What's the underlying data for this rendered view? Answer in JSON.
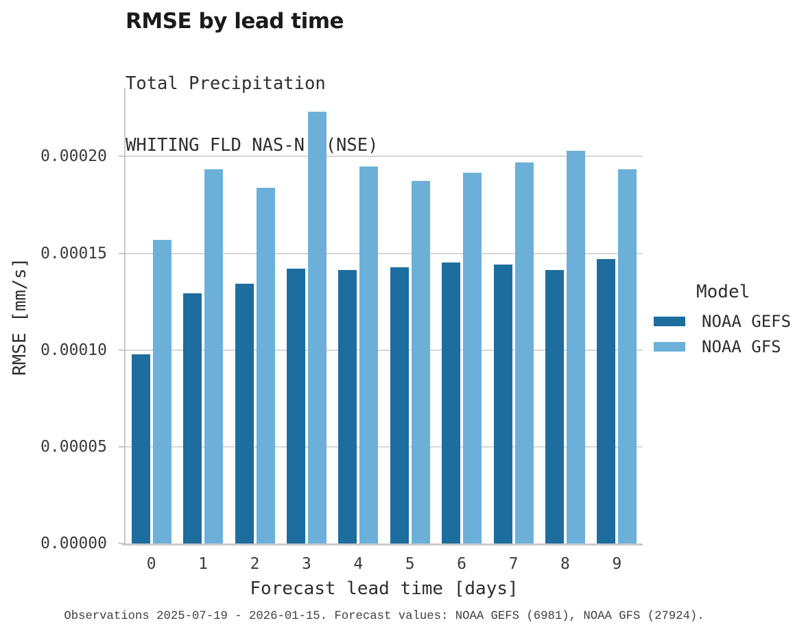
{
  "chart_data": {
    "type": "bar",
    "title": "RMSE by lead time",
    "subtitle": [
      "Total Precipitation",
      "WHITING FLD NAS-N. (NSE)"
    ],
    "xlabel": "Forecast lead time [days]",
    "ylabel": "RMSE [mm/s]",
    "categories": [
      "0",
      "1",
      "2",
      "3",
      "4",
      "5",
      "6",
      "7",
      "8",
      "9"
    ],
    "series": [
      {
        "name": "NOAA GEFS",
        "color": "#1d6d9e",
        "values": [
          9.77e-05,
          0.0001293,
          0.0001341,
          0.0001421,
          0.0001415,
          0.0001429,
          0.0001451,
          0.0001443,
          0.0001413,
          0.0001471
        ]
      },
      {
        "name": "NOAA GFS",
        "color": "#6cb0d9",
        "values": [
          0.0001571,
          0.0001933,
          0.000184,
          0.0002233,
          0.0001948,
          0.0001874,
          0.0001917,
          0.0001971,
          0.0002031,
          0.0001935
        ]
      }
    ],
    "ylim": [
      0,
      0.0002356
    ],
    "yticks": [
      {
        "value": 0.0,
        "label": "0.00000"
      },
      {
        "value": 5e-05,
        "label": "0.00005"
      },
      {
        "value": 0.0001,
        "label": "0.00010"
      },
      {
        "value": 0.00015,
        "label": "0.00015"
      },
      {
        "value": 0.0002,
        "label": "0.00020"
      }
    ],
    "grid": true,
    "legend_title": "Model",
    "legend_position": "right"
  },
  "footer": {
    "text": "Observations 2025-07-19 - 2026-01-15. Forecast values: NOAA GEFS (6981), NOAA GFS (27924)."
  }
}
